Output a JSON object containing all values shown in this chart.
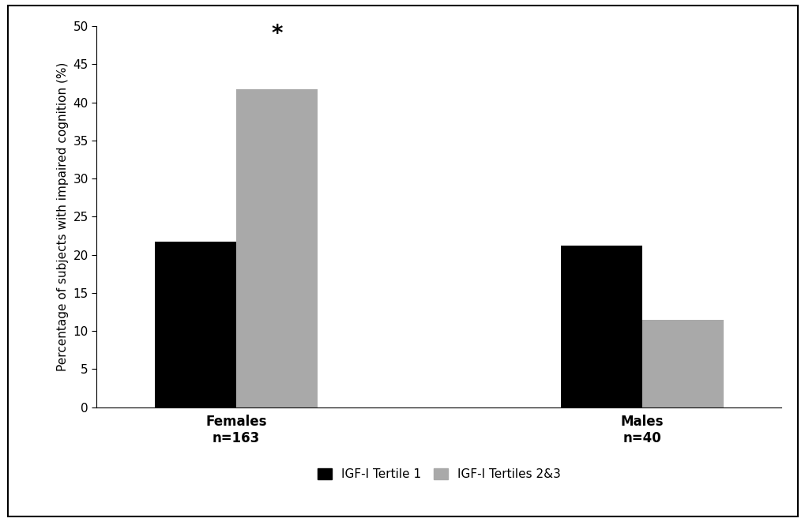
{
  "groups": [
    "Females\nn=163",
    "Males\nn=40"
  ],
  "tertile1_values": [
    21.7,
    21.2
  ],
  "tertile23_values": [
    41.7,
    11.5
  ],
  "bar_color_t1": "#000000",
  "bar_color_t23": "#a9a9a9",
  "ylabel": "Percentage of subjects with impaired cognition (%)",
  "ylim": [
    0,
    50
  ],
  "yticks": [
    0,
    5,
    10,
    15,
    20,
    25,
    30,
    35,
    40,
    45,
    50
  ],
  "legend_t1": "IGF-I Tertile 1",
  "legend_t23": "IGF-I Tertiles 2&3",
  "asterisk_text": "*",
  "bar_width": 0.32,
  "group_positions": [
    1.0,
    2.6
  ],
  "background_color": "#ffffff",
  "spine_color": "#000000",
  "figsize": [
    10.2,
    6.61
  ],
  "dpi": 100
}
